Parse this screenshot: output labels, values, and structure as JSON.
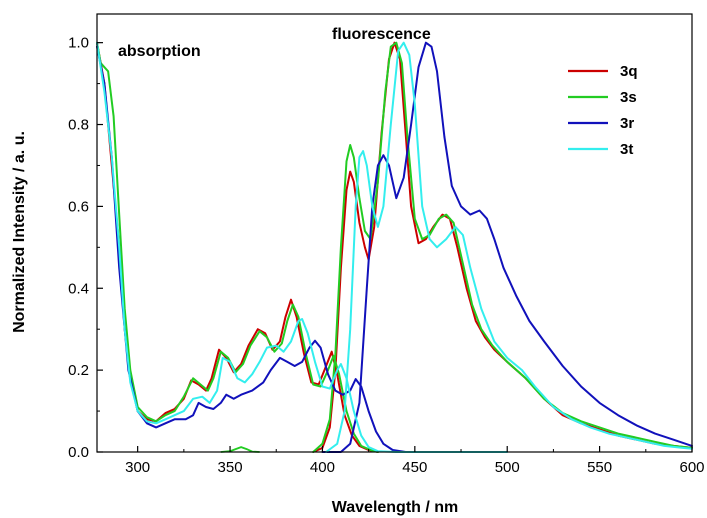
{
  "chart_data": {
    "type": "line",
    "xlabel": "Wavelength / nm",
    "ylabel": "Normalized Intensity / a. u.",
    "xlim": [
      278,
      600
    ],
    "ylim": [
      0.0,
      1.07
    ],
    "x_ticks": [
      "300",
      "350",
      "400",
      "450",
      "500",
      "550",
      "600"
    ],
    "y_ticks": [
      "0.0",
      "0.2",
      "0.4",
      "0.6",
      "0.8",
      "1.0"
    ],
    "annotations": [
      "absorption",
      "fluorescence"
    ],
    "legend_position": "top-right",
    "series": [
      {
        "name": "3q",
        "color": "#cc0000",
        "absorption": [
          [
            278,
            1.0
          ],
          [
            282,
            0.9
          ],
          [
            286,
            0.7
          ],
          [
            290,
            0.5
          ],
          [
            293,
            0.3
          ],
          [
            296,
            0.18
          ],
          [
            300,
            0.1
          ],
          [
            305,
            0.08
          ],
          [
            310,
            0.075
          ],
          [
            315,
            0.095
          ],
          [
            320,
            0.105
          ],
          [
            325,
            0.13
          ],
          [
            329,
            0.175
          ],
          [
            333,
            0.165
          ],
          [
            337,
            0.15
          ],
          [
            340,
            0.18
          ],
          [
            344,
            0.25
          ],
          [
            348,
            0.23
          ],
          [
            352,
            0.195
          ],
          [
            356,
            0.215
          ],
          [
            360,
            0.26
          ],
          [
            365,
            0.3
          ],
          [
            369,
            0.29
          ],
          [
            373,
            0.25
          ],
          [
            377,
            0.27
          ],
          [
            380,
            0.33
          ],
          [
            383,
            0.372
          ],
          [
            386,
            0.33
          ],
          [
            390,
            0.24
          ],
          [
            394,
            0.17
          ],
          [
            398,
            0.165
          ],
          [
            402,
            0.21
          ],
          [
            405,
            0.245
          ],
          [
            408,
            0.19
          ],
          [
            412,
            0.09
          ],
          [
            416,
            0.04
          ],
          [
            420,
            0.015
          ],
          [
            425,
            0.005
          ],
          [
            430,
            0.0
          ]
        ],
        "fluorescence": [
          [
            395,
            0.0
          ],
          [
            400,
            0.01
          ],
          [
            404,
            0.06
          ],
          [
            407,
            0.2
          ],
          [
            410,
            0.45
          ],
          [
            413,
            0.64
          ],
          [
            415,
            0.685
          ],
          [
            417,
            0.66
          ],
          [
            420,
            0.56
          ],
          [
            423,
            0.5
          ],
          [
            425,
            0.47
          ],
          [
            428,
            0.55
          ],
          [
            432,
            0.78
          ],
          [
            436,
            0.96
          ],
          [
            439,
            1.0
          ],
          [
            442,
            0.96
          ],
          [
            445,
            0.78
          ],
          [
            448,
            0.6
          ],
          [
            452,
            0.51
          ],
          [
            456,
            0.52
          ],
          [
            460,
            0.55
          ],
          [
            465,
            0.58
          ],
          [
            469,
            0.57
          ],
          [
            473,
            0.5
          ],
          [
            478,
            0.4
          ],
          [
            483,
            0.32
          ],
          [
            488,
            0.28
          ],
          [
            493,
            0.25
          ],
          [
            500,
            0.22
          ],
          [
            510,
            0.18
          ],
          [
            520,
            0.13
          ],
          [
            530,
            0.09
          ],
          [
            540,
            0.07
          ],
          [
            550,
            0.055
          ],
          [
            560,
            0.04
          ],
          [
            570,
            0.03
          ],
          [
            580,
            0.02
          ],
          [
            590,
            0.015
          ],
          [
            600,
            0.01
          ]
        ]
      },
      {
        "name": "3s",
        "color": "#22cc22",
        "absorption": [
          [
            278,
            1.0
          ],
          [
            280,
            0.95
          ],
          [
            284,
            0.93
          ],
          [
            287,
            0.82
          ],
          [
            290,
            0.58
          ],
          [
            293,
            0.35
          ],
          [
            296,
            0.2
          ],
          [
            300,
            0.11
          ],
          [
            305,
            0.085
          ],
          [
            310,
            0.075
          ],
          [
            315,
            0.09
          ],
          [
            320,
            0.1
          ],
          [
            325,
            0.135
          ],
          [
            330,
            0.18
          ],
          [
            334,
            0.165
          ],
          [
            338,
            0.15
          ],
          [
            341,
            0.18
          ],
          [
            345,
            0.245
          ],
          [
            349,
            0.23
          ],
          [
            353,
            0.195
          ],
          [
            357,
            0.215
          ],
          [
            361,
            0.26
          ],
          [
            366,
            0.295
          ],
          [
            370,
            0.28
          ],
          [
            374,
            0.245
          ],
          [
            378,
            0.265
          ],
          [
            381,
            0.32
          ],
          [
            384,
            0.36
          ],
          [
            387,
            0.33
          ],
          [
            391,
            0.24
          ],
          [
            395,
            0.165
          ],
          [
            399,
            0.16
          ],
          [
            403,
            0.2
          ],
          [
            406,
            0.235
          ],
          [
            409,
            0.19
          ],
          [
            413,
            0.1
          ],
          [
            417,
            0.045
          ],
          [
            421,
            0.015
          ],
          [
            426,
            0.005
          ],
          [
            430,
            0.0
          ]
        ],
        "fluorescence": [
          [
            395,
            0.0
          ],
          [
            400,
            0.02
          ],
          [
            404,
            0.08
          ],
          [
            407,
            0.24
          ],
          [
            410,
            0.5
          ],
          [
            413,
            0.71
          ],
          [
            415,
            0.75
          ],
          [
            417,
            0.72
          ],
          [
            420,
            0.62
          ],
          [
            423,
            0.54
          ],
          [
            426,
            0.52
          ],
          [
            430,
            0.66
          ],
          [
            434,
            0.88
          ],
          [
            437,
            0.99
          ],
          [
            440,
            1.0
          ],
          [
            443,
            0.95
          ],
          [
            446,
            0.77
          ],
          [
            450,
            0.57
          ],
          [
            454,
            0.52
          ],
          [
            458,
            0.53
          ],
          [
            463,
            0.57
          ],
          [
            467,
            0.58
          ],
          [
            471,
            0.56
          ],
          [
            476,
            0.46
          ],
          [
            481,
            0.36
          ],
          [
            486,
            0.3
          ],
          [
            492,
            0.26
          ],
          [
            500,
            0.22
          ],
          [
            510,
            0.18
          ],
          [
            520,
            0.13
          ],
          [
            530,
            0.095
          ],
          [
            540,
            0.075
          ],
          [
            550,
            0.06
          ],
          [
            560,
            0.045
          ],
          [
            570,
            0.035
          ],
          [
            580,
            0.025
          ],
          [
            590,
            0.015
          ],
          [
            600,
            0.01
          ]
        ]
      },
      {
        "name": "3r",
        "color": "#1111bb",
        "absorption": [
          [
            278,
            0.99
          ],
          [
            282,
            0.9
          ],
          [
            286,
            0.72
          ],
          [
            290,
            0.45
          ],
          [
            295,
            0.2
          ],
          [
            300,
            0.1
          ],
          [
            305,
            0.07
          ],
          [
            310,
            0.06
          ],
          [
            315,
            0.07
          ],
          [
            320,
            0.08
          ],
          [
            326,
            0.08
          ],
          [
            330,
            0.09
          ],
          [
            333,
            0.12
          ],
          [
            337,
            0.11
          ],
          [
            341,
            0.105
          ],
          [
            345,
            0.12
          ],
          [
            348,
            0.14
          ],
          [
            352,
            0.13
          ],
          [
            356,
            0.14
          ],
          [
            362,
            0.15
          ],
          [
            368,
            0.17
          ],
          [
            372,
            0.2
          ],
          [
            377,
            0.23
          ],
          [
            381,
            0.22
          ],
          [
            385,
            0.21
          ],
          [
            389,
            0.22
          ],
          [
            393,
            0.255
          ],
          [
            396,
            0.272
          ],
          [
            399,
            0.255
          ],
          [
            403,
            0.19
          ],
          [
            407,
            0.15
          ],
          [
            411,
            0.14
          ],
          [
            415,
            0.15
          ],
          [
            418,
            0.178
          ],
          [
            421,
            0.16
          ],
          [
            425,
            0.1
          ],
          [
            429,
            0.05
          ],
          [
            433,
            0.02
          ],
          [
            438,
            0.005
          ],
          [
            445,
            0.0
          ]
        ],
        "fluorescence": [
          [
            400,
            0.0
          ],
          [
            410,
            0.0
          ],
          [
            415,
            0.02
          ],
          [
            420,
            0.12
          ],
          [
            424,
            0.4
          ],
          [
            427,
            0.6
          ],
          [
            430,
            0.7
          ],
          [
            433,
            0.725
          ],
          [
            436,
            0.7
          ],
          [
            440,
            0.62
          ],
          [
            444,
            0.67
          ],
          [
            448,
            0.8
          ],
          [
            452,
            0.94
          ],
          [
            456,
            1.0
          ],
          [
            459,
            0.99
          ],
          [
            462,
            0.93
          ],
          [
            466,
            0.77
          ],
          [
            470,
            0.65
          ],
          [
            475,
            0.6
          ],
          [
            480,
            0.58
          ],
          [
            485,
            0.59
          ],
          [
            489,
            0.57
          ],
          [
            493,
            0.52
          ],
          [
            498,
            0.45
          ],
          [
            505,
            0.38
          ],
          [
            512,
            0.32
          ],
          [
            520,
            0.27
          ],
          [
            530,
            0.21
          ],
          [
            540,
            0.16
          ],
          [
            550,
            0.12
          ],
          [
            560,
            0.09
          ],
          [
            570,
            0.065
          ],
          [
            580,
            0.045
          ],
          [
            590,
            0.03
          ],
          [
            600,
            0.015
          ]
        ]
      },
      {
        "name": "3t",
        "color": "#33eeee",
        "absorption": [
          [
            278,
            1.0
          ],
          [
            282,
            0.88
          ],
          [
            286,
            0.72
          ],
          [
            290,
            0.5
          ],
          [
            293,
            0.3
          ],
          [
            296,
            0.17
          ],
          [
            300,
            0.1
          ],
          [
            305,
            0.075
          ],
          [
            310,
            0.07
          ],
          [
            315,
            0.08
          ],
          [
            320,
            0.09
          ],
          [
            325,
            0.1
          ],
          [
            330,
            0.13
          ],
          [
            335,
            0.135
          ],
          [
            339,
            0.12
          ],
          [
            343,
            0.15
          ],
          [
            346,
            0.23
          ],
          [
            350,
            0.22
          ],
          [
            354,
            0.18
          ],
          [
            358,
            0.17
          ],
          [
            362,
            0.19
          ],
          [
            366,
            0.22
          ],
          [
            370,
            0.255
          ],
          [
            375,
            0.26
          ],
          [
            379,
            0.245
          ],
          [
            383,
            0.27
          ],
          [
            387,
            0.32
          ],
          [
            389,
            0.325
          ],
          [
            392,
            0.29
          ],
          [
            396,
            0.22
          ],
          [
            400,
            0.16
          ],
          [
            404,
            0.155
          ],
          [
            408,
            0.2
          ],
          [
            410,
            0.215
          ],
          [
            413,
            0.18
          ],
          [
            417,
            0.1
          ],
          [
            421,
            0.04
          ],
          [
            425,
            0.012
          ],
          [
            430,
            0.002
          ],
          [
            440,
            0.0
          ],
          [
            500,
            0.0
          ]
        ],
        "fluorescence": [
          [
            402,
            0.0
          ],
          [
            408,
            0.02
          ],
          [
            412,
            0.1
          ],
          [
            415,
            0.3
          ],
          [
            418,
            0.6
          ],
          [
            420,
            0.72
          ],
          [
            422,
            0.735
          ],
          [
            424,
            0.7
          ],
          [
            427,
            0.6
          ],
          [
            430,
            0.55
          ],
          [
            433,
            0.6
          ],
          [
            437,
            0.8
          ],
          [
            441,
            0.98
          ],
          [
            444,
            1.0
          ],
          [
            447,
            0.97
          ],
          [
            450,
            0.85
          ],
          [
            454,
            0.6
          ],
          [
            458,
            0.52
          ],
          [
            462,
            0.5
          ],
          [
            467,
            0.52
          ],
          [
            472,
            0.55
          ],
          [
            476,
            0.53
          ],
          [
            480,
            0.45
          ],
          [
            486,
            0.35
          ],
          [
            493,
            0.27
          ],
          [
            500,
            0.23
          ],
          [
            508,
            0.2
          ],
          [
            515,
            0.16
          ],
          [
            525,
            0.11
          ],
          [
            535,
            0.08
          ],
          [
            545,
            0.06
          ],
          [
            555,
            0.045
          ],
          [
            565,
            0.035
          ],
          [
            575,
            0.025
          ],
          [
            585,
            0.015
          ],
          [
            595,
            0.01
          ],
          [
            600,
            0.008
          ]
        ]
      }
    ],
    "small_features": [
      {
        "series": "3s",
        "points": [
          [
            345,
            0.0
          ],
          [
            350,
            0.002
          ],
          [
            353,
            0.007
          ],
          [
            356,
            0.012
          ],
          [
            359,
            0.007
          ],
          [
            362,
            0.001
          ],
          [
            366,
            0.0
          ]
        ]
      }
    ]
  }
}
